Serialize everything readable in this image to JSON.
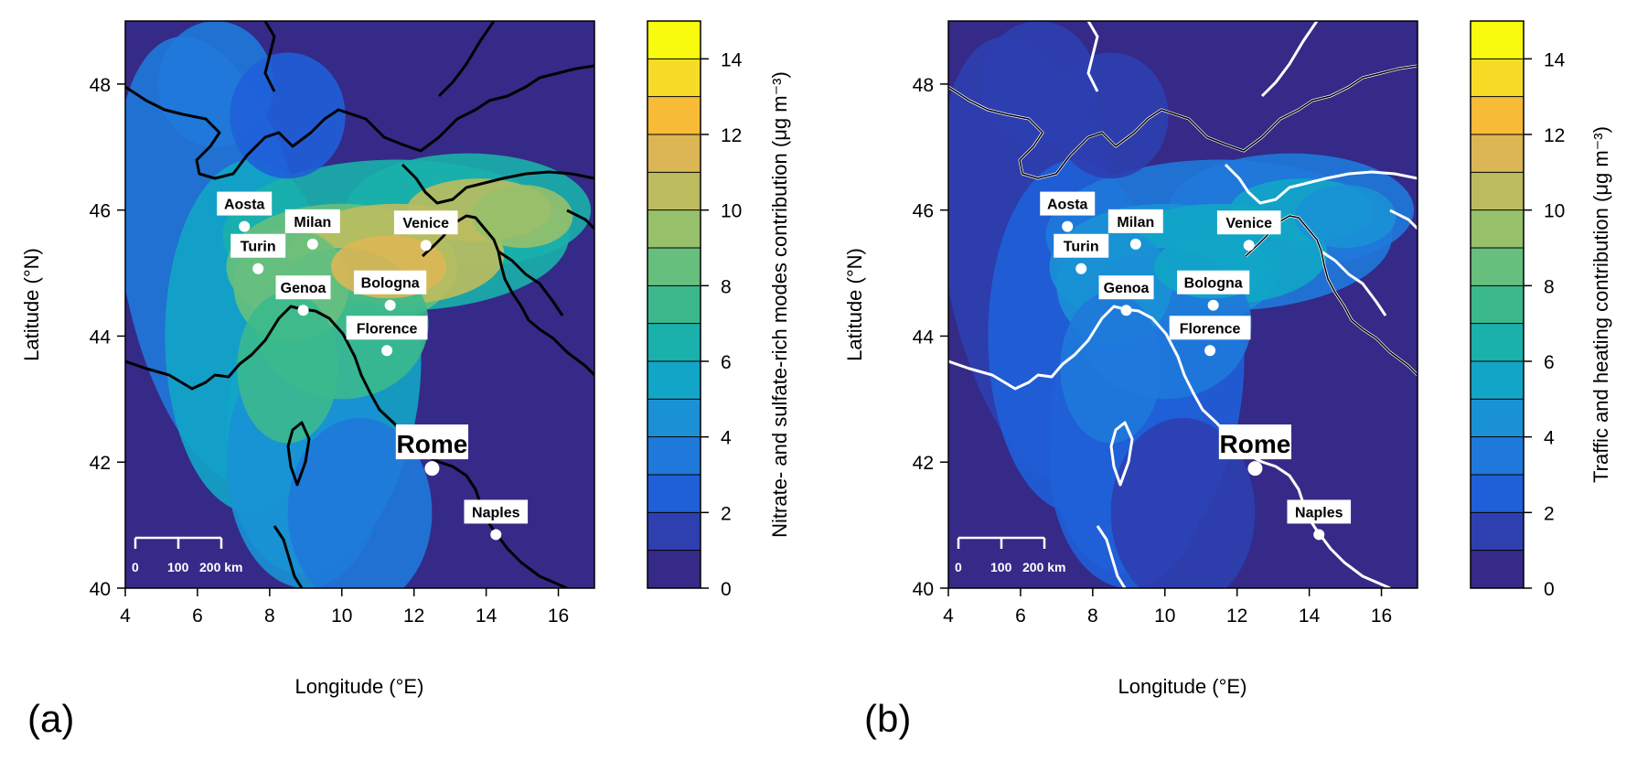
{
  "panels": [
    {
      "tag": "(a)",
      "xlabel": "Longitude (°E)",
      "ylabel": "Latitude (°N)",
      "cbar_label": "Nitrate- and sulfate-rich modes contribution (μg m⁻³)",
      "intensity": 1.0
    },
    {
      "tag": "(b)",
      "xlabel": "Longitude (°E)",
      "ylabel": "Latitude (°N)",
      "cbar_label": "Traffic and heating contribution (μg m⁻³)",
      "intensity": 0.45
    }
  ],
  "x_ticks": [
    "4",
    "6",
    "8",
    "10",
    "12",
    "14",
    "16"
  ],
  "x_tick_values": [
    4,
    6,
    8,
    10,
    12,
    14,
    16
  ],
  "y_ticks": [
    "40",
    "42",
    "44",
    "46",
    "48"
  ],
  "y_tick_values": [
    40,
    42,
    44,
    46,
    48
  ],
  "xlim": [
    4,
    17
  ],
  "ylim": [
    40,
    49
  ],
  "colorbar": {
    "ticks": [
      "0",
      "2",
      "4",
      "6",
      "8",
      "10",
      "12",
      "14"
    ],
    "tick_values": [
      0,
      2,
      4,
      6,
      8,
      10,
      12,
      14
    ],
    "range": [
      0,
      15
    ],
    "colors": [
      "#352a87",
      "#2e3fb0",
      "#1f5fd8",
      "#1f79da",
      "#1a91d5",
      "#12a5c7",
      "#1ab0ab",
      "#3bb98d",
      "#67bf7d",
      "#97c06a",
      "#bcbc5e",
      "#dcb655",
      "#f8bb37",
      "#f6dc26",
      "#f9fb0e"
    ]
  },
  "cities": [
    {
      "name": "Aosta",
      "lon": 7.3,
      "lat": 45.74,
      "bold": false,
      "big": false
    },
    {
      "name": "Milan",
      "lon": 9.19,
      "lat": 45.46,
      "bold": true,
      "big": false
    },
    {
      "name": "Turin",
      "lon": 7.68,
      "lat": 45.07,
      "bold": true,
      "big": false
    },
    {
      "name": "Venice",
      "lon": 12.33,
      "lat": 45.44,
      "bold": true,
      "big": false
    },
    {
      "name": "Genoa",
      "lon": 8.93,
      "lat": 44.41,
      "bold": true,
      "big": false
    },
    {
      "name": "Bologna",
      "lon": 11.34,
      "lat": 44.49,
      "bold": true,
      "big": false
    },
    {
      "name": "Florence",
      "lon": 11.25,
      "lat": 43.77,
      "bold": true,
      "big": false
    },
    {
      "name": "Rome",
      "lon": 12.5,
      "lat": 41.9,
      "bold": true,
      "big": true
    },
    {
      "name": "Naples",
      "lon": 14.27,
      "lat": 40.85,
      "bold": true,
      "big": false
    }
  ],
  "scalebar": {
    "labels": [
      "0",
      "100",
      "200 km"
    ]
  }
}
